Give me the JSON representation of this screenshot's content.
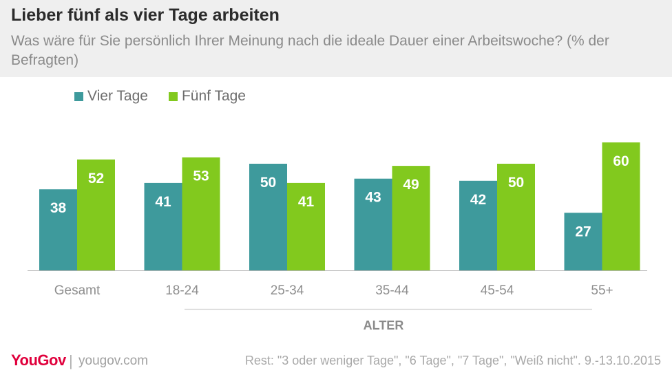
{
  "header": {
    "title": "Lieber fünf als vier Tage arbeiten",
    "subtitle": "Was wäre für Sie persönlich Ihrer Meinung nach die ideale Dauer einer Arbeitswoche? (% der Befragten)"
  },
  "footer": {
    "logo": "YouGov",
    "separator": "|",
    "site": "yougov.com",
    "note": "Rest: \"3 oder weniger Tage\", \"6 Tage\", \"7 Tage\", \"Weiß nicht\". 9.-13.10.2015"
  },
  "chart_data": {
    "type": "bar",
    "categories": [
      "Gesamt",
      "18-24",
      "25-34",
      "35-44",
      "45-54",
      "55+"
    ],
    "series": [
      {
        "name": "Vier Tage",
        "color": "#3e9a9c",
        "values": [
          38,
          41,
          50,
          43,
          42,
          27
        ]
      },
      {
        "name": "Fünf Tage",
        "color": "#82c91e",
        "values": [
          52,
          53,
          41,
          49,
          50,
          60
        ]
      }
    ],
    "group_label": "ALTER",
    "ylim": [
      0,
      60
    ],
    "grid": false,
    "legend": "top-left"
  }
}
